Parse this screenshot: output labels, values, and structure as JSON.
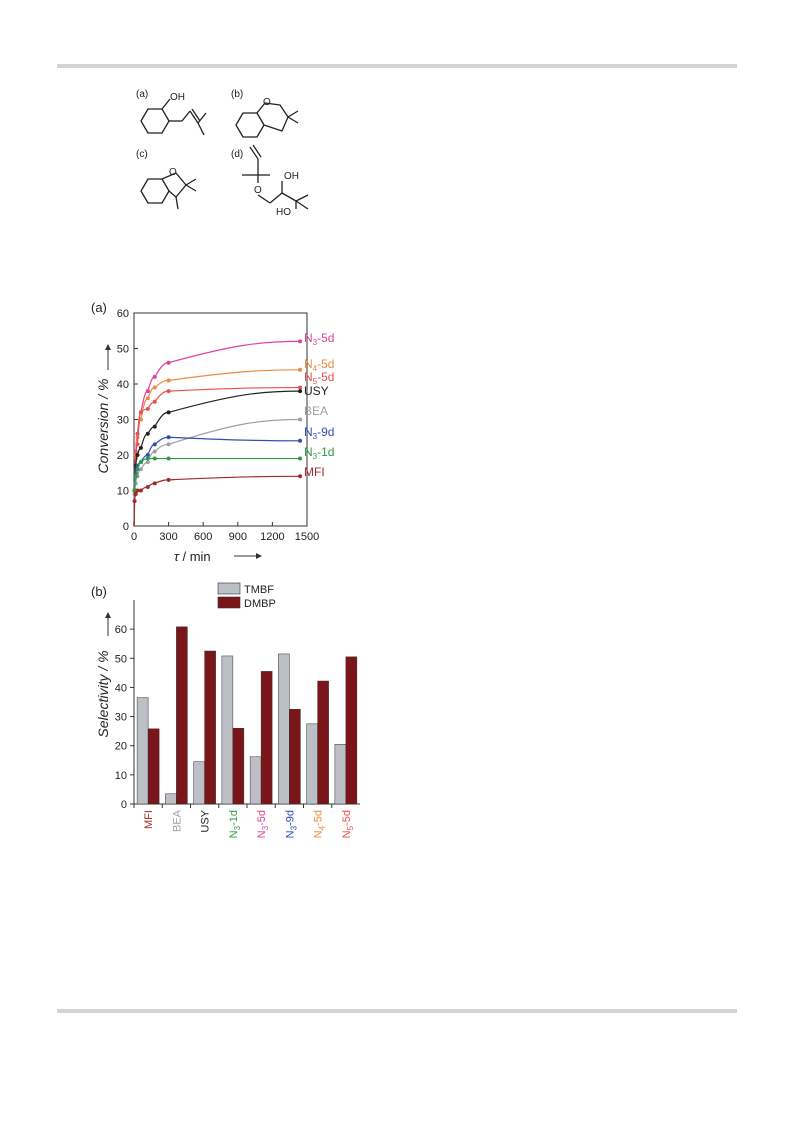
{
  "structures": {
    "a": {
      "label": "(a)",
      "oh": "OH"
    },
    "b": {
      "label": "(b)",
      "o": "O"
    },
    "c": {
      "label": "(c)",
      "o": "O"
    },
    "d": {
      "label": "(d)",
      "o": "O",
      "oh1": "OH",
      "oh2": "HO"
    }
  },
  "chart_data": [
    {
      "type": "scatter",
      "panel_label": "(a)",
      "xlabel_sym": "τ",
      "xlabel_rest": " / min",
      "ylabel": "Conversion / %",
      "xlim": [
        0,
        1500
      ],
      "ylim": [
        0,
        60
      ],
      "xticks": [
        0,
        300,
        600,
        900,
        1200,
        1500
      ],
      "yticks": [
        0,
        10,
        20,
        30,
        40,
        50,
        60
      ],
      "x": [
        5,
        15,
        30,
        60,
        120,
        180,
        300,
        1440
      ],
      "series": [
        {
          "label_main": "N",
          "label_sub": "3",
          "label_tail": "-5d",
          "color": "#e0409a",
          "values": [
            10,
            21,
            26,
            32,
            38,
            42,
            46,
            52
          ]
        },
        {
          "label_main": "N",
          "label_sub": "4",
          "label_tail": "-5d",
          "color": "#ec8a40",
          "values": [
            10,
            20,
            25,
            30,
            36,
            39,
            41,
            44
          ]
        },
        {
          "label_main": "N",
          "label_sub": "5",
          "label_tail": "-5d",
          "color": "#e8524a",
          "values": [
            10,
            19,
            23,
            32,
            33,
            35,
            38,
            39
          ]
        },
        {
          "label_main": "USY",
          "label_sub": "",
          "label_tail": "",
          "color": "#222222",
          "values": [
            10,
            17,
            20,
            22,
            26,
            28,
            32,
            38
          ]
        },
        {
          "label_main": "BEA",
          "label_sub": "",
          "label_tail": "",
          "color": "#a0a0a0",
          "values": [
            9,
            12,
            14,
            16,
            18,
            21,
            23,
            30
          ]
        },
        {
          "label_main": "N",
          "label_sub": "3",
          "label_tail": "-9d",
          "color": "#3050b0",
          "values": [
            10,
            15,
            17,
            18,
            20,
            23,
            25,
            24
          ]
        },
        {
          "label_main": "N",
          "label_sub": "3",
          "label_tail": "-1d",
          "color": "#2e9a48",
          "values": [
            10,
            14,
            16,
            18,
            19,
            19,
            19,
            19
          ]
        },
        {
          "label_main": "MFI",
          "label_sub": "",
          "label_tail": "",
          "color": "#a02a2a",
          "values": [
            7,
            9,
            10,
            10,
            11,
            12,
            13,
            14
          ]
        }
      ]
    },
    {
      "type": "bar",
      "panel_label": "(b)",
      "ylabel": "Selectivity / %",
      "ylim": [
        0,
        70
      ],
      "yticks": [
        0,
        10,
        20,
        30,
        40,
        50,
        60
      ],
      "categories": [
        {
          "main": "MFI",
          "sub": "",
          "tail": "",
          "color": "#a02a2a"
        },
        {
          "main": "BEA",
          "sub": "",
          "tail": "",
          "color": "#a0a0a0"
        },
        {
          "main": "USY",
          "sub": "",
          "tail": "",
          "color": "#222222"
        },
        {
          "main": "N",
          "sub": "3",
          "tail": "-1d",
          "color": "#2e9a48"
        },
        {
          "main": "N",
          "sub": "3",
          "tail": "-5d",
          "color": "#e0409a"
        },
        {
          "main": "N",
          "sub": "3",
          "tail": "-9d",
          "color": "#3050b0"
        },
        {
          "main": "N",
          "sub": "4",
          "tail": "-5d",
          "color": "#ec8a40"
        },
        {
          "main": "N",
          "sub": "5",
          "tail": "-5d",
          "color": "#e8524a"
        }
      ],
      "series": [
        {
          "name": "TMBF",
          "color": "#bcbfc6",
          "values": [
            36.5,
            3.5,
            14.5,
            50.8,
            16.2,
            51.5,
            27.5,
            20.5
          ]
        },
        {
          "name": "DMBP",
          "color": "#7a1519",
          "values": [
            25.8,
            60.8,
            52.5,
            26.0,
            45.5,
            32.5,
            42.2,
            50.5
          ]
        }
      ],
      "legend": "top"
    }
  ]
}
